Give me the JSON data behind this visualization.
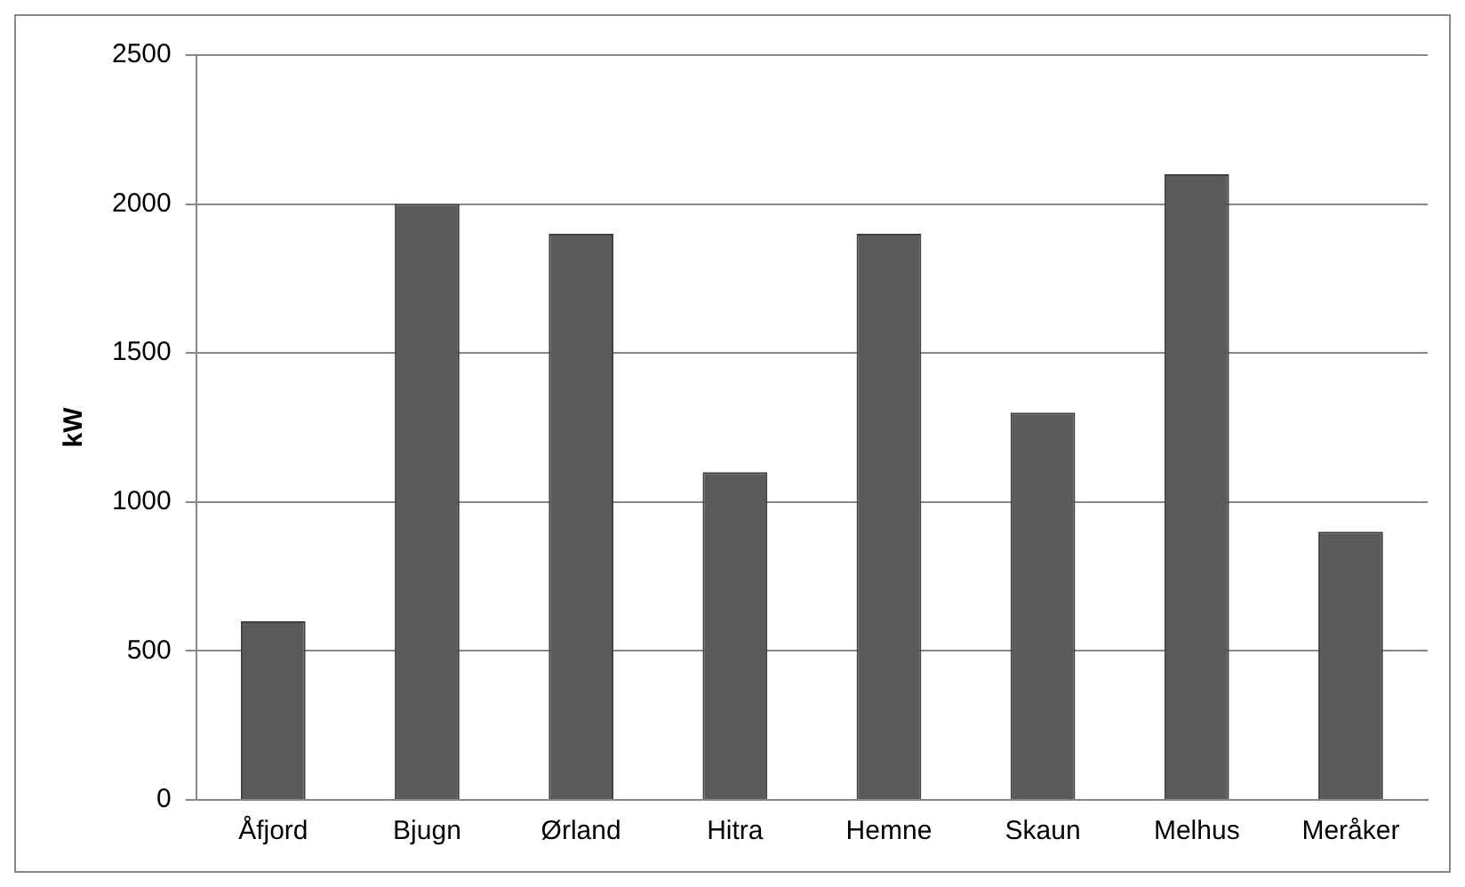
{
  "chart_data": {
    "type": "bar",
    "ylabel": "kW",
    "categories": [
      "Åfjord",
      "Bjugn",
      "Ørland",
      "Hitra",
      "Hemne",
      "Skaun",
      "Melhus",
      "Meråker"
    ],
    "values": [
      600,
      2000,
      1900,
      1100,
      1900,
      1300,
      2100,
      900
    ],
    "color": "#5a5a5a",
    "ylim": [
      0,
      2500
    ],
    "yticks": [
      0,
      500,
      1000,
      1500,
      2000,
      2500
    ],
    "grid": "y",
    "legend": false
  }
}
